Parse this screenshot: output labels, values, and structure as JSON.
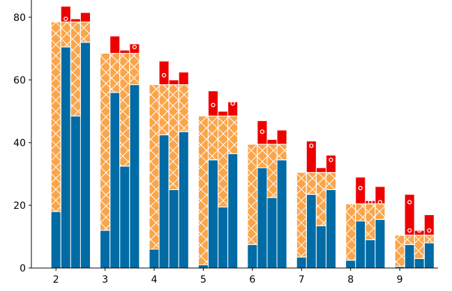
{
  "chart_data": {
    "type": "stacked-bar",
    "x": [
      2,
      2.2,
      2.4,
      2.6,
      3,
      3.2,
      3.4,
      3.6,
      4,
      4.2,
      4.4,
      4.6,
      5,
      5.2,
      5.4,
      5.6,
      6,
      6.2,
      6.4,
      6.6,
      7,
      7.2,
      7.4,
      7.6,
      8,
      8.2,
      8.4,
      8.6,
      9,
      9.2,
      9.4,
      9.6
    ],
    "bar_width": 0.2,
    "series": [
      {
        "color": "#006ba4",
        "hatch": false,
        "values": [
          18,
          70.5,
          48.5,
          72,
          12,
          56,
          32.5,
          58.5,
          6,
          42.5,
          25,
          43.5,
          1,
          34.5,
          19.5,
          36.5,
          7.5,
          32,
          22.5,
          34.5,
          3.5,
          23.5,
          13.5,
          25,
          2.5,
          15,
          9,
          15.5,
          0.5,
          7.5,
          3,
          8
        ]
      },
      {
        "color": "#fba54a",
        "hatch": true,
        "values": [
          60.5,
          8,
          30,
          6.5,
          56.5,
          12.5,
          36,
          10,
          52.5,
          16,
          33.5,
          15,
          47.5,
          14,
          29,
          12,
          32,
          7.5,
          17,
          5,
          27,
          7,
          17,
          5.5,
          18,
          5.5,
          11.5,
          5,
          10,
          3,
          7.5,
          2.5
        ]
      },
      {
        "color": "#ee0000",
        "hatch": false,
        "values": [
          0,
          5,
          1,
          3,
          0,
          5.5,
          1,
          3,
          0,
          7.5,
          1.5,
          4,
          0,
          8,
          1.5,
          4.5,
          0,
          7.5,
          1.5,
          4.5,
          0,
          10,
          1.5,
          5.5,
          0,
          8.5,
          1,
          5.5,
          0,
          13,
          1.5,
          6.5
        ]
      }
    ],
    "markers": {
      "x": [
        2.2,
        3.4,
        3.6,
        4.2,
        5.2,
        5.6,
        6.2,
        7.2,
        7.6,
        8.2,
        8.4,
        8.6,
        9.2,
        9.2,
        9.4,
        9.6
      ],
      "y": [
        79.5,
        70.5,
        70.5,
        61.5,
        52,
        52.5,
        43.5,
        39,
        34.5,
        25.5,
        21,
        21,
        21,
        12,
        12,
        12
      ]
    },
    "xlim": [
      1.5,
      9.78
    ],
    "xticks": [
      2,
      3,
      4,
      5,
      6,
      7,
      8,
      9
    ],
    "ylim": [
      0,
      85.5
    ],
    "yticks": [
      0,
      20,
      40,
      60,
      80
    ]
  }
}
